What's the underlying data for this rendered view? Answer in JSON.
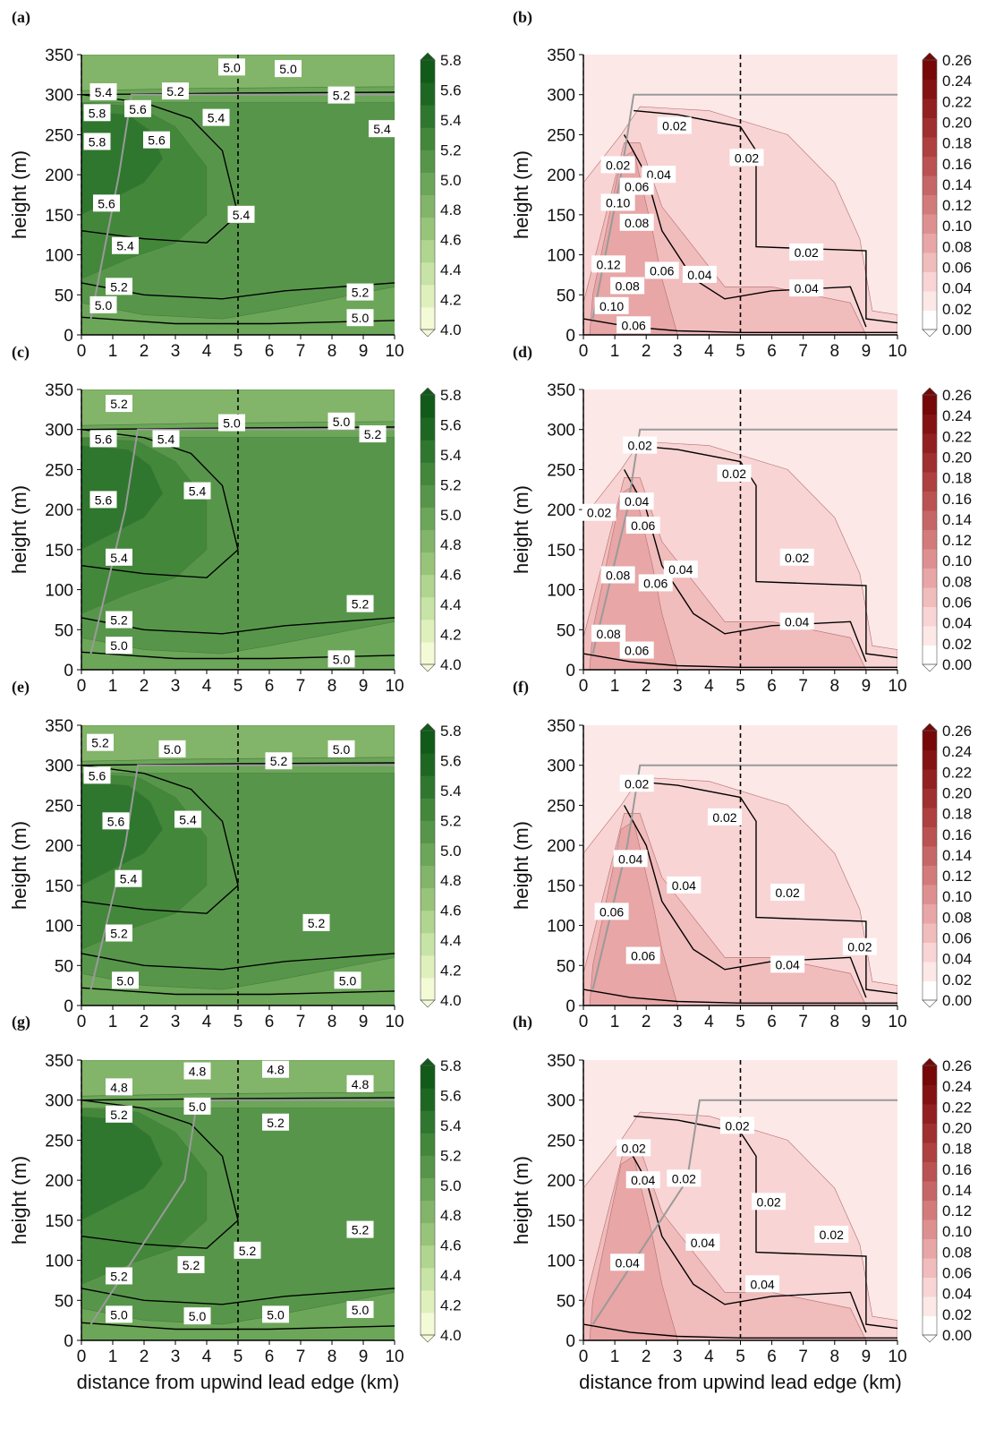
{
  "figure": {
    "xlabel": "distance from upwind lead edge (km)",
    "ylabel": "height (m)",
    "xticks": [
      "0",
      "1",
      "2",
      "3",
      "4",
      "5",
      "6",
      "7",
      "8",
      "9",
      "10"
    ],
    "yticks": [
      "0",
      "50",
      "100",
      "150",
      "200",
      "250",
      "300",
      "350"
    ],
    "green_colorbar": {
      "ticks": [
        "4.0",
        "4.2",
        "4.4",
        "4.6",
        "4.8",
        "5.0",
        "5.2",
        "5.4",
        "5.6",
        "5.8"
      ],
      "colors": [
        "#f3fad6",
        "#dff0bd",
        "#c7e3a5",
        "#b0d58f",
        "#98c47a",
        "#82b469",
        "#6ca659",
        "#57964a",
        "#43873b",
        "#2f772e",
        "#1e6722",
        "#115a18"
      ]
    },
    "red_colorbar": {
      "ticks": [
        "0.00",
        "0.02",
        "0.04",
        "0.06",
        "0.08",
        "0.10",
        "0.12",
        "0.14",
        "0.16",
        "0.18",
        "0.20",
        "0.22",
        "0.24",
        "0.26"
      ],
      "colors": [
        "#ffffff",
        "#fde8e8",
        "#f9d4d4",
        "#f1bcbc",
        "#e8a6a6",
        "#de9090",
        "#d37b7b",
        "#c76666",
        "#bb5252",
        "#ae4040",
        "#a02f2f",
        "#922020",
        "#841212",
        "#760808"
      ]
    }
  },
  "chart_data": [
    {
      "panel": "(a)",
      "type": "contour",
      "xlim": [
        0,
        10
      ],
      "ylim": [
        0,
        350
      ],
      "colorbar_ticks": [
        "4.0",
        "4.2",
        "4.4",
        "4.6",
        "4.8",
        "5.0",
        "5.2",
        "5.4",
        "5.6",
        "5.8"
      ],
      "contour_labels": [
        {
          "text": "5.0",
          "x": 4.8,
          "y": 334
        },
        {
          "text": "5.0",
          "x": 6.6,
          "y": 332
        },
        {
          "text": "5.4",
          "x": 0.7,
          "y": 303
        },
        {
          "text": "5.2",
          "x": 3.0,
          "y": 304
        },
        {
          "text": "5.6",
          "x": 1.8,
          "y": 282
        },
        {
          "text": "5.2",
          "x": 8.3,
          "y": 299
        },
        {
          "text": "5.8",
          "x": 0.5,
          "y": 277
        },
        {
          "text": "5.4",
          "x": 4.3,
          "y": 271
        },
        {
          "text": "5.6",
          "x": 2.4,
          "y": 243
        },
        {
          "text": "5.4",
          "x": 9.6,
          "y": 257
        },
        {
          "text": "5.8",
          "x": 0.5,
          "y": 241
        },
        {
          "text": "5.6",
          "x": 0.8,
          "y": 164
        },
        {
          "text": "5.4",
          "x": 5.1,
          "y": 150
        },
        {
          "text": "5.4",
          "x": 1.4,
          "y": 111
        },
        {
          "text": "5.2",
          "x": 1.2,
          "y": 60
        },
        {
          "text": "5.2",
          "x": 8.9,
          "y": 53
        },
        {
          "text": "5.0",
          "x": 0.7,
          "y": 37
        },
        {
          "text": "5.0",
          "x": 8.9,
          "y": 21
        }
      ]
    },
    {
      "panel": "(b)",
      "type": "contour",
      "xlim": [
        0,
        10
      ],
      "ylim": [
        0,
        350
      ],
      "colorbar_ticks": [
        "0.00",
        "0.02",
        "0.04",
        "0.06",
        "0.08",
        "0.10",
        "0.12",
        "0.14",
        "0.16",
        "0.18",
        "0.20",
        "0.22",
        "0.24",
        "0.26"
      ],
      "contour_labels": [
        {
          "text": "0.02",
          "x": 2.9,
          "y": 261
        },
        {
          "text": "0.02",
          "x": 5.2,
          "y": 221
        },
        {
          "text": "0.02",
          "x": 1.1,
          "y": 212
        },
        {
          "text": "0.04",
          "x": 2.4,
          "y": 200
        },
        {
          "text": "0.06",
          "x": 1.7,
          "y": 185
        },
        {
          "text": "0.10",
          "x": 1.1,
          "y": 165
        },
        {
          "text": "0.08",
          "x": 1.7,
          "y": 140
        },
        {
          "text": "0.02",
          "x": 7.1,
          "y": 103
        },
        {
          "text": "0.12",
          "x": 0.8,
          "y": 88
        },
        {
          "text": "0.06",
          "x": 2.5,
          "y": 80
        },
        {
          "text": "0.04",
          "x": 3.7,
          "y": 75
        },
        {
          "text": "0.08",
          "x": 1.4,
          "y": 61
        },
        {
          "text": "0.04",
          "x": 7.1,
          "y": 58
        },
        {
          "text": "0.10",
          "x": 0.9,
          "y": 36
        },
        {
          "text": "0.06",
          "x": 1.6,
          "y": 12
        }
      ]
    },
    {
      "panel": "(c)",
      "type": "contour",
      "xlim": [
        0,
        10
      ],
      "ylim": [
        0,
        350
      ],
      "colorbar_ticks": [
        "4.0",
        "4.2",
        "4.4",
        "4.6",
        "4.8",
        "5.0",
        "5.2",
        "5.4",
        "5.6",
        "5.8"
      ],
      "contour_labels": [
        {
          "text": "5.2",
          "x": 1.2,
          "y": 332
        },
        {
          "text": "5.0",
          "x": 4.8,
          "y": 308
        },
        {
          "text": "5.0",
          "x": 8.3,
          "y": 310
        },
        {
          "text": "5.2",
          "x": 9.3,
          "y": 294
        },
        {
          "text": "5.6",
          "x": 0.7,
          "y": 288
        },
        {
          "text": "5.4",
          "x": 2.7,
          "y": 288
        },
        {
          "text": "5.4",
          "x": 3.7,
          "y": 223
        },
        {
          "text": "5.6",
          "x": 0.7,
          "y": 212
        },
        {
          "text": "5.4",
          "x": 1.2,
          "y": 140
        },
        {
          "text": "5.2",
          "x": 8.9,
          "y": 82
        },
        {
          "text": "5.2",
          "x": 1.2,
          "y": 62
        },
        {
          "text": "5.0",
          "x": 1.2,
          "y": 30
        },
        {
          "text": "5.0",
          "x": 8.3,
          "y": 13
        }
      ]
    },
    {
      "panel": "(d)",
      "type": "contour",
      "xlim": [
        0,
        10
      ],
      "ylim": [
        0,
        350
      ],
      "colorbar_ticks": [
        "0.00",
        "0.02",
        "0.04",
        "0.06",
        "0.08",
        "0.10",
        "0.12",
        "0.14",
        "0.16",
        "0.18",
        "0.20",
        "0.22",
        "0.24",
        "0.26"
      ],
      "contour_labels": [
        {
          "text": "0.02",
          "x": 1.8,
          "y": 280
        },
        {
          "text": "0.02",
          "x": 4.8,
          "y": 245
        },
        {
          "text": "0.04",
          "x": 1.7,
          "y": 210
        },
        {
          "text": "0.02",
          "x": 0.5,
          "y": 196
        },
        {
          "text": "0.06",
          "x": 1.9,
          "y": 180
        },
        {
          "text": "0.04",
          "x": 3.1,
          "y": 125
        },
        {
          "text": "0.02",
          "x": 6.8,
          "y": 140
        },
        {
          "text": "0.08",
          "x": 1.1,
          "y": 118
        },
        {
          "text": "0.06",
          "x": 2.3,
          "y": 108
        },
        {
          "text": "0.04",
          "x": 6.8,
          "y": 60
        },
        {
          "text": "0.08",
          "x": 0.8,
          "y": 45
        },
        {
          "text": "0.06",
          "x": 1.7,
          "y": 24
        }
      ]
    },
    {
      "panel": "(e)",
      "type": "contour",
      "xlim": [
        0,
        10
      ],
      "ylim": [
        0,
        350
      ],
      "colorbar_ticks": [
        "4.0",
        "4.2",
        "4.4",
        "4.6",
        "4.8",
        "5.0",
        "5.2",
        "5.4",
        "5.6",
        "5.8"
      ],
      "contour_labels": [
        {
          "text": "5.2",
          "x": 0.6,
          "y": 328
        },
        {
          "text": "5.0",
          "x": 2.9,
          "y": 320
        },
        {
          "text": "5.0",
          "x": 8.3,
          "y": 320
        },
        {
          "text": "5.2",
          "x": 6.3,
          "y": 305
        },
        {
          "text": "5.6",
          "x": 0.5,
          "y": 287
        },
        {
          "text": "5.6",
          "x": 1.1,
          "y": 230
        },
        {
          "text": "5.4",
          "x": 3.4,
          "y": 232
        },
        {
          "text": "5.4",
          "x": 1.5,
          "y": 158
        },
        {
          "text": "5.2",
          "x": 7.5,
          "y": 103
        },
        {
          "text": "5.2",
          "x": 1.2,
          "y": 90
        },
        {
          "text": "5.0",
          "x": 1.4,
          "y": 31
        },
        {
          "text": "5.0",
          "x": 8.5,
          "y": 31
        }
      ]
    },
    {
      "panel": "(f)",
      "type": "contour",
      "xlim": [
        0,
        10
      ],
      "ylim": [
        0,
        350
      ],
      "colorbar_ticks": [
        "0.00",
        "0.02",
        "0.04",
        "0.06",
        "0.08",
        "0.10",
        "0.12",
        "0.14",
        "0.16",
        "0.18",
        "0.20",
        "0.22",
        "0.24",
        "0.26"
      ],
      "contour_labels": [
        {
          "text": "0.02",
          "x": 1.7,
          "y": 277
        },
        {
          "text": "0.02",
          "x": 4.5,
          "y": 235
        },
        {
          "text": "0.04",
          "x": 1.5,
          "y": 183
        },
        {
          "text": "0.04",
          "x": 3.2,
          "y": 150
        },
        {
          "text": "0.02",
          "x": 6.5,
          "y": 141
        },
        {
          "text": "0.06",
          "x": 0.9,
          "y": 117
        },
        {
          "text": "0.02",
          "x": 8.8,
          "y": 73
        },
        {
          "text": "0.06",
          "x": 1.9,
          "y": 62
        },
        {
          "text": "0.04",
          "x": 6.5,
          "y": 51
        }
      ]
    },
    {
      "panel": "(g)",
      "type": "contour",
      "xlim": [
        0,
        10
      ],
      "ylim": [
        0,
        350
      ],
      "colorbar_ticks": [
        "4.0",
        "4.2",
        "4.4",
        "4.6",
        "4.8",
        "5.0",
        "5.2",
        "5.4",
        "5.6",
        "5.8"
      ],
      "contour_labels": [
        {
          "text": "4.8",
          "x": 3.7,
          "y": 336
        },
        {
          "text": "4.8",
          "x": 6.2,
          "y": 338
        },
        {
          "text": "4.8",
          "x": 1.2,
          "y": 316
        },
        {
          "text": "4.8",
          "x": 8.9,
          "y": 320
        },
        {
          "text": "5.0",
          "x": 3.7,
          "y": 292
        },
        {
          "text": "5.2",
          "x": 1.2,
          "y": 282
        },
        {
          "text": "5.2",
          "x": 6.2,
          "y": 272
        },
        {
          "text": "5.2",
          "x": 8.9,
          "y": 138
        },
        {
          "text": "5.2",
          "x": 5.3,
          "y": 112
        },
        {
          "text": "5.2",
          "x": 3.5,
          "y": 94
        },
        {
          "text": "5.2",
          "x": 1.2,
          "y": 80
        },
        {
          "text": "5.0",
          "x": 1.2,
          "y": 32
        },
        {
          "text": "5.0",
          "x": 3.7,
          "y": 30
        },
        {
          "text": "5.0",
          "x": 6.2,
          "y": 32
        },
        {
          "text": "5.0",
          "x": 8.9,
          "y": 38
        }
      ]
    },
    {
      "panel": "(h)",
      "type": "contour",
      "xlim": [
        0,
        10
      ],
      "ylim": [
        0,
        350
      ],
      "colorbar_ticks": [
        "0.00",
        "0.02",
        "0.04",
        "0.06",
        "0.08",
        "0.10",
        "0.12",
        "0.14",
        "0.16",
        "0.18",
        "0.20",
        "0.22",
        "0.24",
        "0.26"
      ],
      "contour_labels": [
        {
          "text": "0.02",
          "x": 4.9,
          "y": 268
        },
        {
          "text": "0.02",
          "x": 1.6,
          "y": 240
        },
        {
          "text": "0.02",
          "x": 3.2,
          "y": 202
        },
        {
          "text": "0.04",
          "x": 1.9,
          "y": 200
        },
        {
          "text": "0.02",
          "x": 5.9,
          "y": 173
        },
        {
          "text": "0.02",
          "x": 7.9,
          "y": 132
        },
        {
          "text": "0.04",
          "x": 3.8,
          "y": 122
        },
        {
          "text": "0.04",
          "x": 1.4,
          "y": 97
        },
        {
          "text": "0.04",
          "x": 5.7,
          "y": 70
        }
      ]
    }
  ]
}
